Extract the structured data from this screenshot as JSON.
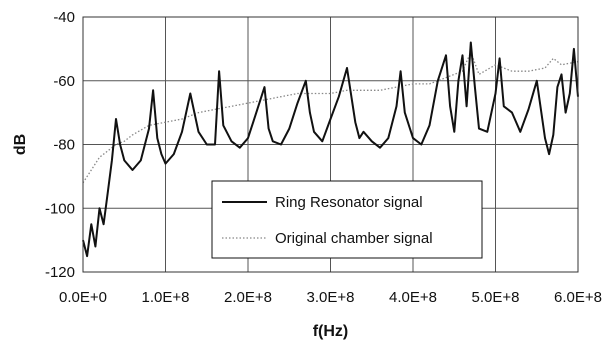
{
  "chart_data": {
    "type": "line",
    "xlabel": "f(Hz)",
    "ylabel": "dB",
    "xlim": [
      0,
      600000000
    ],
    "ylim": [
      -120,
      -40
    ],
    "x_ticks": [
      0,
      100000000,
      200000000,
      300000000,
      400000000,
      500000000,
      600000000
    ],
    "x_tick_labels": [
      "0.0E+0",
      "1.0E+8",
      "2.0E+8",
      "3.0E+8",
      "4.0E+8",
      "5.0E+8",
      "6.0E+8"
    ],
    "y_ticks": [
      -120,
      -100,
      -80,
      -60,
      -40
    ],
    "y_tick_labels": [
      "-120",
      "-100",
      "-80",
      "-60",
      "-40"
    ],
    "grid": true,
    "legend_position": "center-right",
    "series": [
      {
        "name": "Ring Resonator signal",
        "color": "#111111",
        "style": "solid",
        "x": [
          0,
          5000000,
          10000000,
          15000000,
          20000000,
          25000000,
          30000000,
          35000000,
          40000000,
          45000000,
          50000000,
          60000000,
          70000000,
          80000000,
          85000000,
          90000000,
          95000000,
          100000000,
          110000000,
          120000000,
          130000000,
          140000000,
          150000000,
          160000000,
          165000000,
          170000000,
          180000000,
          190000000,
          200000000,
          210000000,
          220000000,
          225000000,
          230000000,
          240000000,
          250000000,
          260000000,
          270000000,
          275000000,
          280000000,
          290000000,
          300000000,
          310000000,
          320000000,
          330000000,
          335000000,
          340000000,
          350000000,
          360000000,
          370000000,
          380000000,
          385000000,
          390000000,
          400000000,
          410000000,
          420000000,
          430000000,
          440000000,
          445000000,
          450000000,
          455000000,
          460000000,
          465000000,
          470000000,
          475000000,
          480000000,
          490000000,
          500000000,
          505000000,
          510000000,
          520000000,
          530000000,
          540000000,
          550000000,
          560000000,
          565000000,
          570000000,
          575000000,
          580000000,
          585000000,
          590000000,
          595000000,
          600000000
        ],
        "values": [
          -110,
          -115,
          -105,
          -112,
          -100,
          -105,
          -95,
          -85,
          -72,
          -80,
          -85,
          -88,
          -85,
          -75,
          -63,
          -78,
          -83,
          -86,
          -83,
          -76,
          -64,
          -76,
          -80,
          -80,
          -57,
          -74,
          -79,
          -81,
          -78,
          -70,
          -62,
          -75,
          -79,
          -80,
          -75,
          -67,
          -60,
          -70,
          -76,
          -79,
          -72,
          -65,
          -56,
          -73,
          -78,
          -76,
          -79,
          -81,
          -78,
          -68,
          -57,
          -70,
          -78,
          -80,
          -74,
          -60,
          -52,
          -68,
          -76,
          -60,
          -52,
          -68,
          -48,
          -62,
          -75,
          -76,
          -64,
          -53,
          -68,
          -70,
          -76,
          -69,
          -60,
          -78,
          -83,
          -77,
          -62,
          -58,
          -70,
          -64,
          -50,
          -65
        ]
      },
      {
        "name": "Original chamber signal",
        "color": "#888888",
        "style": "dotted",
        "x": [
          0,
          10000000,
          20000000,
          30000000,
          40000000,
          50000000,
          60000000,
          80000000,
          100000000,
          120000000,
          140000000,
          160000000,
          180000000,
          200000000,
          220000000,
          240000000,
          260000000,
          280000000,
          300000000,
          320000000,
          340000000,
          360000000,
          380000000,
          400000000,
          420000000,
          440000000,
          460000000,
          470000000,
          480000000,
          500000000,
          520000000,
          540000000,
          560000000,
          570000000,
          580000000,
          600000000
        ],
        "values": [
          -92,
          -88,
          -84,
          -82,
          -80,
          -79,
          -77,
          -74,
          -73,
          -72,
          -70,
          -69,
          -68,
          -67,
          -66,
          -65,
          -64,
          -64,
          -64,
          -63,
          -63,
          -63,
          -62,
          -61,
          -61,
          -59,
          -57,
          -51,
          -58,
          -55,
          -57,
          -57,
          -56,
          -53,
          -55,
          -54
        ]
      }
    ]
  }
}
